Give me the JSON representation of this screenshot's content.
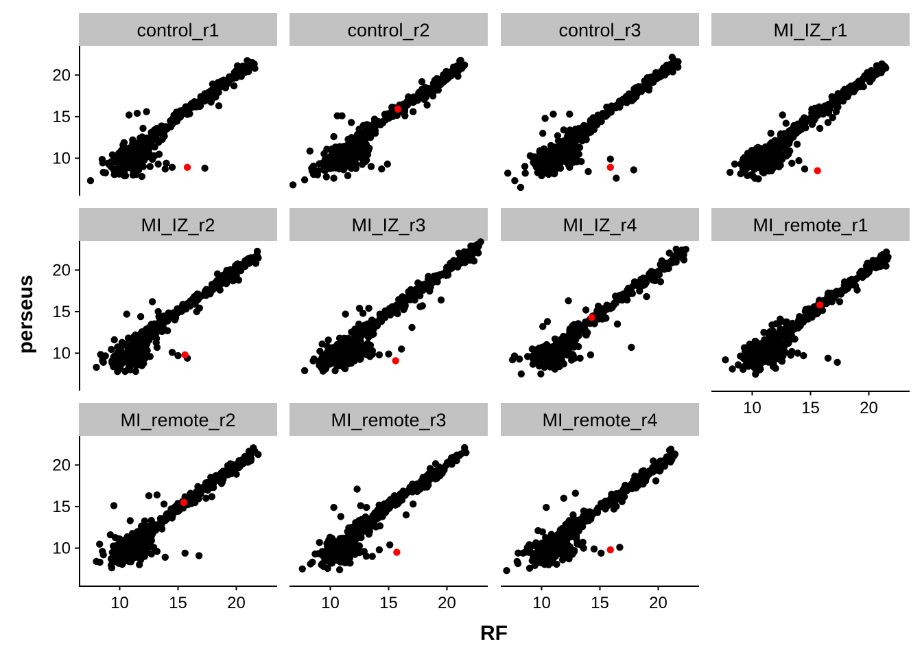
{
  "chart_data": {
    "type": "scatter",
    "facet_layout": {
      "columns": 4,
      "rows": 3
    },
    "xlabel": "RF",
    "ylabel": "perseus",
    "xlim": [
      6.5,
      23.5
    ],
    "ylim": [
      5.5,
      23.5
    ],
    "x_ticks": [
      10,
      15,
      20
    ],
    "y_ticks": [
      10,
      15,
      20
    ],
    "grid": false,
    "colors": {
      "point": "#000000",
      "highlight": "#ff0000",
      "strip": "#c2c2c2",
      "axis": "#000000"
    },
    "panels": [
      {
        "name": "control_r1",
        "highlight": [
          15.8,
          8.9
        ],
        "outliers": [
          [
            7.5,
            7.3
          ],
          [
            8.6,
            8.3
          ],
          [
            9.0,
            9.4
          ],
          [
            10.8,
            15.2
          ],
          [
            11.5,
            15.4
          ],
          [
            12.3,
            15.6
          ],
          [
            12.0,
            13.6
          ],
          [
            11.9,
            12.1
          ],
          [
            10.2,
            11.0
          ],
          [
            12.6,
            9.0
          ],
          [
            13.3,
            9.3
          ],
          [
            13.9,
            8.7
          ],
          [
            14.5,
            8.9
          ],
          [
            14.0,
            9.4
          ],
          [
            17.3,
            8.8
          ],
          [
            17.9,
            17.1
          ],
          [
            18.5,
            16.3
          ],
          [
            19.8,
            18.7
          ],
          [
            10.5,
            7.9
          ],
          [
            11.9,
            7.8
          ],
          [
            9.5,
            8.6
          ],
          [
            10.1,
            9.8
          ],
          [
            11.4,
            10.4
          ],
          [
            13.0,
            10.3
          ]
        ],
        "diag": {
          "x0": 11.5,
          "x1": 21.5,
          "y0": 11.3,
          "y1": 21.6
        }
      },
      {
        "name": "control_r2",
        "highlight": [
          15.8,
          15.9
        ],
        "outliers": [
          [
            6.8,
            6.8
          ],
          [
            7.8,
            7.4
          ],
          [
            8.4,
            8.8
          ],
          [
            8.9,
            8.0
          ],
          [
            10.3,
            12.6
          ],
          [
            10.6,
            15.1
          ],
          [
            11.0,
            15.1
          ],
          [
            11.8,
            14.3
          ],
          [
            12.2,
            11.4
          ],
          [
            12.9,
            12.3
          ],
          [
            12.0,
            9.8
          ],
          [
            13.0,
            9.6
          ],
          [
            13.5,
            9.0
          ],
          [
            14.4,
            8.7
          ],
          [
            14.9,
            9.3
          ],
          [
            17.1,
            15.6
          ],
          [
            16.4,
            15.1
          ],
          [
            18.3,
            16.4
          ],
          [
            18.8,
            17.5
          ],
          [
            10.3,
            7.6
          ],
          [
            11.5,
            7.9
          ],
          [
            9.6,
            9.5
          ],
          [
            11.2,
            10.3
          ],
          [
            12.4,
            10.5
          ]
        ],
        "diag": {
          "x0": 11.6,
          "x1": 21.4,
          "y0": 11.6,
          "y1": 21.3
        }
      },
      {
        "name": "control_r3",
        "highlight": [
          15.9,
          8.9
        ],
        "outliers": [
          [
            7.1,
            8.2
          ],
          [
            7.7,
            7.3
          ],
          [
            8.2,
            6.5
          ],
          [
            8.6,
            8.2
          ],
          [
            10.1,
            13.0
          ],
          [
            10.3,
            14.8
          ],
          [
            11.0,
            15.3
          ],
          [
            12.4,
            15.3
          ],
          [
            11.9,
            13.4
          ],
          [
            11.8,
            11.0
          ],
          [
            12.4,
            8.9
          ],
          [
            13.4,
            9.6
          ],
          [
            14.0,
            8.4
          ],
          [
            15.9,
            9.9
          ],
          [
            16.4,
            7.6
          ],
          [
            17.9,
            8.6
          ],
          [
            19.2,
            18.2
          ],
          [
            21.7,
            21.6
          ],
          [
            10.0,
            7.9
          ],
          [
            11.1,
            8.2
          ],
          [
            9.3,
            9.5
          ],
          [
            10.6,
            9.8
          ],
          [
            12.2,
            10.3
          ],
          [
            13.0,
            10.2
          ]
        ],
        "diag": {
          "x0": 11.8,
          "x1": 21.5,
          "y0": 11.5,
          "y1": 21.5
        }
      },
      {
        "name": "MI_IZ_r1",
        "highlight": [
          15.6,
          8.5
        ],
        "outliers": [
          [
            8.1,
            8.3
          ],
          [
            8.5,
            9.3
          ],
          [
            9.2,
            8.8
          ],
          [
            10.3,
            10.1
          ],
          [
            11.6,
            13.0
          ],
          [
            12.6,
            15.2
          ],
          [
            12.9,
            14.2
          ],
          [
            13.1,
            12.4
          ],
          [
            11.6,
            11.0
          ],
          [
            12.4,
            9.8
          ],
          [
            13.4,
            9.4
          ],
          [
            14.0,
            9.7
          ],
          [
            14.5,
            8.7
          ],
          [
            15.8,
            13.6
          ],
          [
            16.5,
            14.3
          ],
          [
            16.9,
            14.9
          ],
          [
            17.2,
            15.6
          ],
          [
            10.5,
            9.2
          ],
          [
            11.1,
            8.6
          ],
          [
            9.9,
            9.9
          ],
          [
            12.1,
            10.4
          ]
        ],
        "diag": {
          "x0": 12.2,
          "x1": 21.3,
          "y0": 12.0,
          "y1": 21.2
        }
      },
      {
        "name": "MI_IZ_r2",
        "highlight": [
          15.6,
          9.8
        ],
        "outliers": [
          [
            8.0,
            8.3
          ],
          [
            8.6,
            8.9
          ],
          [
            9.4,
            8.7
          ],
          [
            10.2,
            11.0
          ],
          [
            10.6,
            14.7
          ],
          [
            11.8,
            14.4
          ],
          [
            12.8,
            16.2
          ],
          [
            13.3,
            15.0
          ],
          [
            14.1,
            12.7
          ],
          [
            13.2,
            10.7
          ],
          [
            14.5,
            10.1
          ],
          [
            15.0,
            9.7
          ],
          [
            15.8,
            9.4
          ],
          [
            16.6,
            15.0
          ],
          [
            18.6,
            17.6
          ],
          [
            20.2,
            18.8
          ],
          [
            10.9,
            8.0
          ],
          [
            11.9,
            8.5
          ],
          [
            9.6,
            9.7
          ],
          [
            12.6,
            9.6
          ]
        ],
        "diag": {
          "x0": 11.8,
          "x1": 21.8,
          "y0": 11.7,
          "y1": 21.8
        }
      },
      {
        "name": "MI_IZ_r3",
        "highlight": [
          15.6,
          9.1
        ],
        "outliers": [
          [
            7.8,
            7.9
          ],
          [
            8.6,
            9.3
          ],
          [
            9.3,
            11.1
          ],
          [
            9.6,
            8.1
          ],
          [
            10.8,
            11.8
          ],
          [
            11.3,
            14.7
          ],
          [
            12.5,
            15.4
          ],
          [
            12.8,
            14.8
          ],
          [
            13.3,
            15.4
          ],
          [
            13.4,
            9.6
          ],
          [
            14.2,
            9.8
          ],
          [
            15.0,
            9.9
          ],
          [
            16.1,
            10.5
          ],
          [
            17.0,
            13.1
          ],
          [
            17.7,
            15.6
          ],
          [
            17.9,
            15.7
          ],
          [
            19.5,
            16.4
          ],
          [
            22.0,
            21.2
          ],
          [
            10.7,
            8.5
          ],
          [
            11.8,
            8.8
          ],
          [
            10.0,
            9.4
          ],
          [
            12.6,
            10.2
          ]
        ],
        "diag": {
          "x0": 12.0,
          "x1": 22.8,
          "y0": 11.8,
          "y1": 22.8
        }
      },
      {
        "name": "MI_IZ_r4",
        "highlight": [
          14.3,
          14.3
        ],
        "outliers": [
          [
            7.5,
            9.2
          ],
          [
            8.1,
            9.3
          ],
          [
            8.8,
            9.6
          ],
          [
            10.1,
            13.2
          ],
          [
            10.5,
            13.8
          ],
          [
            12.3,
            16.3
          ],
          [
            13.8,
            15.2
          ],
          [
            13.0,
            12.2
          ],
          [
            11.4,
            10.4
          ],
          [
            12.7,
            9.7
          ],
          [
            13.3,
            9.4
          ],
          [
            14.2,
            9.8
          ],
          [
            15.2,
            14.1
          ],
          [
            16.5,
            13.5
          ],
          [
            17.7,
            10.7
          ],
          [
            19.0,
            16.8
          ],
          [
            20.2,
            18.6
          ],
          [
            10.8,
            8.6
          ],
          [
            11.9,
            8.7
          ],
          [
            9.7,
            10.1
          ]
        ],
        "diag": {
          "x0": 12.0,
          "x1": 22.3,
          "y0": 11.6,
          "y1": 22.3
        }
      },
      {
        "name": "MI_remote_r1",
        "highlight": [
          15.8,
          15.8
        ],
        "outliers": [
          [
            7.7,
            9.2
          ],
          [
            8.3,
            8.1
          ],
          [
            8.8,
            8.6
          ],
          [
            9.5,
            9.6
          ],
          [
            10.3,
            11.4
          ],
          [
            11.0,
            12.5
          ],
          [
            11.7,
            13.4
          ],
          [
            12.4,
            14.1
          ],
          [
            12.5,
            11.1
          ],
          [
            13.4,
            10.2
          ],
          [
            13.9,
            10.0
          ],
          [
            14.4,
            9.7
          ],
          [
            16.5,
            9.4
          ],
          [
            17.3,
            8.9
          ],
          [
            16.7,
            16.3
          ],
          [
            17.5,
            16.2
          ],
          [
            19.0,
            17.6
          ],
          [
            10.7,
            8.1
          ],
          [
            11.8,
            8.4
          ],
          [
            9.4,
            10.2
          ]
        ],
        "diag": {
          "x0": 11.8,
          "x1": 21.6,
          "y0": 11.5,
          "y1": 21.6
        }
      },
      {
        "name": "MI_remote_r2",
        "highlight": [
          15.5,
          15.5
        ],
        "outliers": [
          [
            8.0,
            8.4
          ],
          [
            8.3,
            8.3
          ],
          [
            8.6,
            9.2
          ],
          [
            9.2,
            11.6
          ],
          [
            9.5,
            15.1
          ],
          [
            10.9,
            13.3
          ],
          [
            12.5,
            16.3
          ],
          [
            13.2,
            16.4
          ],
          [
            13.8,
            15.3
          ],
          [
            12.2,
            12.0
          ],
          [
            13.2,
            9.6
          ],
          [
            13.9,
            8.9
          ],
          [
            15.6,
            9.4
          ],
          [
            16.8,
            9.1
          ],
          [
            17.4,
            16.0
          ],
          [
            17.9,
            16.2
          ],
          [
            20.0,
            18.9
          ],
          [
            10.8,
            8.4
          ],
          [
            11.8,
            8.6
          ],
          [
            9.7,
            9.8
          ],
          [
            12.4,
            10.0
          ]
        ],
        "diag": {
          "x0": 11.5,
          "x1": 21.5,
          "y0": 11.2,
          "y1": 21.5
        }
      },
      {
        "name": "MI_remote_r3",
        "highlight": [
          15.7,
          9.5
        ],
        "outliers": [
          [
            7.6,
            7.5
          ],
          [
            8.3,
            8.1
          ],
          [
            8.7,
            9.3
          ],
          [
            9.5,
            8.8
          ],
          [
            10.1,
            10.9
          ],
          [
            10.3,
            14.9
          ],
          [
            10.9,
            13.8
          ],
          [
            12.3,
            17.1
          ],
          [
            12.6,
            15.1
          ],
          [
            13.1,
            14.9
          ],
          [
            11.9,
            11.4
          ],
          [
            12.9,
            9.6
          ],
          [
            13.6,
            9.0
          ],
          [
            14.2,
            9.8
          ],
          [
            15.1,
            10.4
          ],
          [
            15.5,
            16.3
          ],
          [
            16.5,
            14.0
          ],
          [
            17.1,
            15.3
          ],
          [
            18.4,
            17.6
          ],
          [
            19.4,
            18.7
          ],
          [
            10.8,
            7.4
          ],
          [
            11.7,
            8.2
          ],
          [
            12.4,
            9.8
          ]
        ],
        "diag": {
          "x0": 11.7,
          "x1": 21.6,
          "y0": 11.6,
          "y1": 21.7
        }
      },
      {
        "name": "MI_remote_r4",
        "highlight": [
          15.9,
          9.8
        ],
        "outliers": [
          [
            7.0,
            7.3
          ],
          [
            7.9,
            8.4
          ],
          [
            8.4,
            9.4
          ],
          [
            8.9,
            9.5
          ],
          [
            9.7,
            12.1
          ],
          [
            10.4,
            14.9
          ],
          [
            11.9,
            16.0
          ],
          [
            12.9,
            16.6
          ],
          [
            12.7,
            14.0
          ],
          [
            11.7,
            11.4
          ],
          [
            12.8,
            9.7
          ],
          [
            13.6,
            10.0
          ],
          [
            14.5,
            9.9
          ],
          [
            15.1,
            9.4
          ],
          [
            16.7,
            10.1
          ],
          [
            16.2,
            14.7
          ],
          [
            16.9,
            15.6
          ],
          [
            18.7,
            17.7
          ],
          [
            19.8,
            18.1
          ],
          [
            10.6,
            8.0
          ],
          [
            11.8,
            8.6
          ],
          [
            9.7,
            10.3
          ],
          [
            12.3,
            10.2
          ]
        ],
        "diag": {
          "x0": 11.5,
          "x1": 21.5,
          "y0": 11.3,
          "y1": 21.5
        }
      }
    ]
  }
}
